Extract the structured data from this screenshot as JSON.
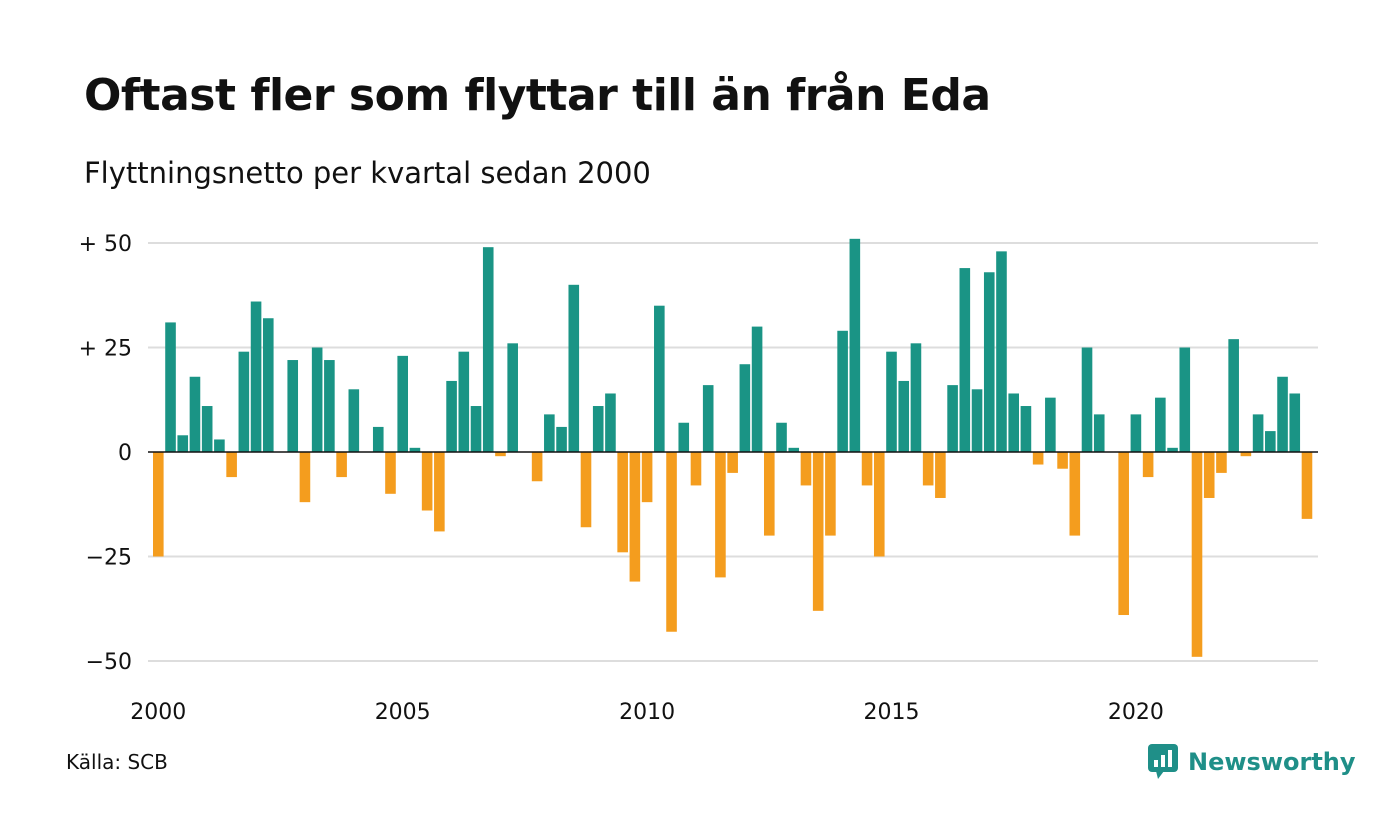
{
  "title": "Oftast fler som flyttar till än från Eda",
  "subtitle": "Flyttningsnetto per kvartal sedan 2000",
  "source": "Källa: SCB",
  "brand": "Newsworthy",
  "colors": {
    "positive": "#1a9485",
    "negative": "#f49d1e",
    "grid": "#dddddd",
    "brand": "#1f8f88"
  },
  "chart_data": {
    "type": "bar",
    "x_unit": "quarter",
    "x_start": "2000 Q1",
    "x_ticks": [
      2000,
      2005,
      2010,
      2015,
      2020
    ],
    "x_tick_labels": [
      "2000",
      "2005",
      "2010",
      "2015",
      "2020"
    ],
    "y_ticks": [
      50,
      25,
      0,
      -25,
      -50
    ],
    "y_tick_labels": [
      "+ 50",
      "+ 25",
      "0",
      "−25",
      "−50"
    ],
    "ylim": [
      -52,
      52
    ],
    "grid": true,
    "values": [
      -25,
      31,
      4,
      18,
      11,
      3,
      -6,
      24,
      36,
      32,
      0,
      22,
      -12,
      25,
      22,
      -6,
      15,
      0,
      6,
      -10,
      23,
      1,
      -14,
      -19,
      17,
      24,
      11,
      49,
      -1,
      26,
      0,
      -7,
      9,
      6,
      40,
      -18,
      11,
      14,
      -24,
      -31,
      -12,
      35,
      -43,
      7,
      -8,
      16,
      -30,
      -5,
      21,
      30,
      -20,
      7,
      1,
      -8,
      -38,
      -20,
      29,
      51,
      -8,
      -25,
      24,
      17,
      26,
      -8,
      -11,
      16,
      44,
      15,
      43,
      48,
      14,
      11,
      -3,
      13,
      -4,
      -20,
      25,
      9,
      0,
      -39,
      9,
      -6,
      13,
      1,
      25,
      -49,
      -11,
      -5,
      27,
      -1,
      9,
      5,
      18,
      14,
      -16
    ]
  }
}
